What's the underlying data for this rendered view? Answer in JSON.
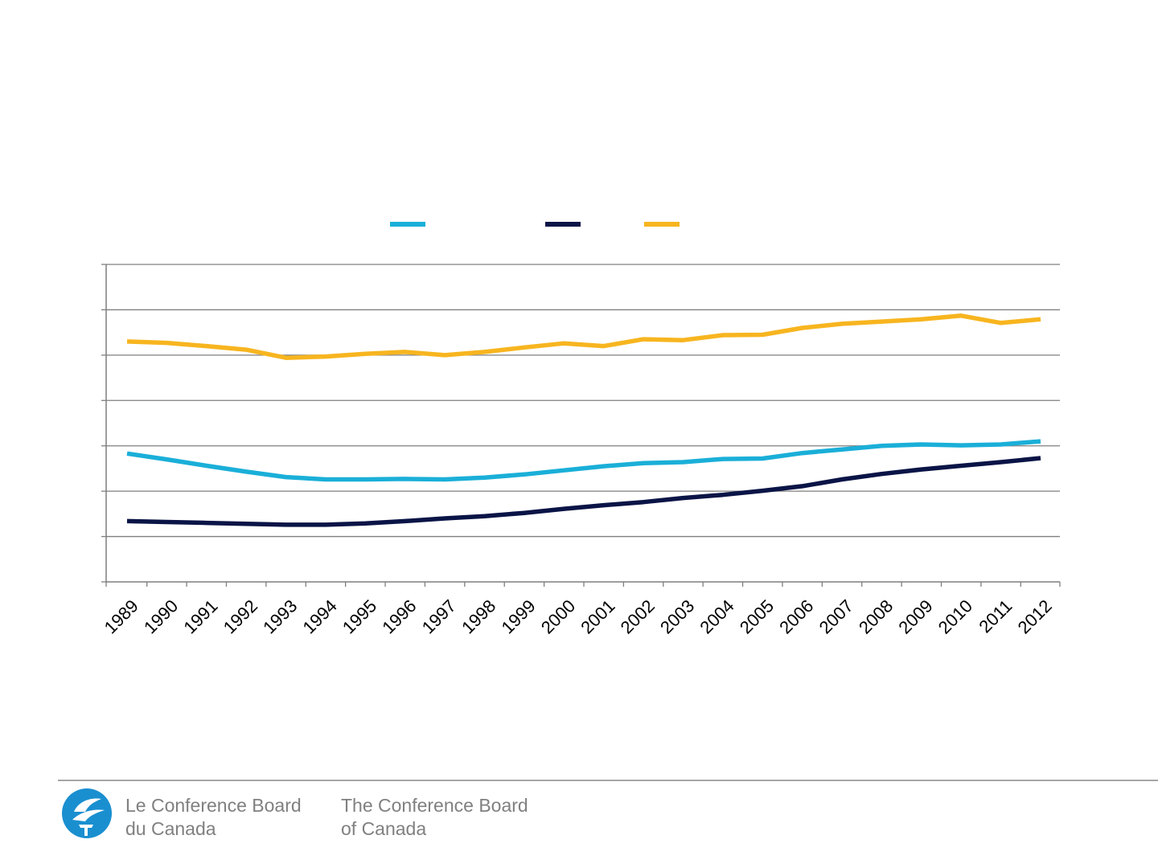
{
  "chart_data": {
    "type": "line",
    "title": "",
    "xlabel": "",
    "ylabel": "",
    "x": [
      "1989",
      "1990",
      "1991",
      "1992",
      "1993",
      "1994",
      "1995",
      "1996",
      "1997",
      "1998",
      "1999",
      "2000",
      "2001",
      "2002",
      "2003",
      "2004",
      "2005",
      "2006",
      "2007",
      "2008",
      "2009",
      "2010",
      "2011",
      "2012"
    ],
    "ylim": [
      0,
      7
    ],
    "y_ticks": [
      0,
      1,
      2,
      3,
      4,
      5,
      6,
      7
    ],
    "y_tick_labels_visible": false,
    "grid": true,
    "legend_position": "top",
    "series": [
      {
        "color": "#1aafd8",
        "values": [
          2.83,
          2.7,
          2.56,
          2.43,
          2.31,
          2.26,
          2.26,
          2.27,
          2.26,
          2.3,
          2.37,
          2.46,
          2.55,
          2.62,
          2.64,
          2.71,
          2.72,
          2.84,
          2.92,
          3.0,
          3.03,
          3.01,
          3.03,
          3.1
        ]
      },
      {
        "color": "#0a1446",
        "values": [
          1.34,
          1.32,
          1.3,
          1.28,
          1.26,
          1.26,
          1.29,
          1.34,
          1.4,
          1.45,
          1.52,
          1.61,
          1.69,
          1.76,
          1.85,
          1.92,
          2.01,
          2.11,
          2.26,
          2.38,
          2.48,
          2.56,
          2.64,
          2.73
        ]
      },
      {
        "color": "#f7b51f",
        "values": [
          5.3,
          5.27,
          5.2,
          5.12,
          4.94,
          4.97,
          5.03,
          5.07,
          5.0,
          5.07,
          5.17,
          5.26,
          5.2,
          5.35,
          5.33,
          5.44,
          5.45,
          5.6,
          5.69,
          5.74,
          5.79,
          5.87,
          5.71,
          5.79
        ]
      }
    ]
  },
  "footer": {
    "brand_fr_line1": "Le Conference Board",
    "brand_fr_line2": "du Canada",
    "brand_en_line1": "The Conference Board",
    "brand_en_line2": "of Canada"
  }
}
